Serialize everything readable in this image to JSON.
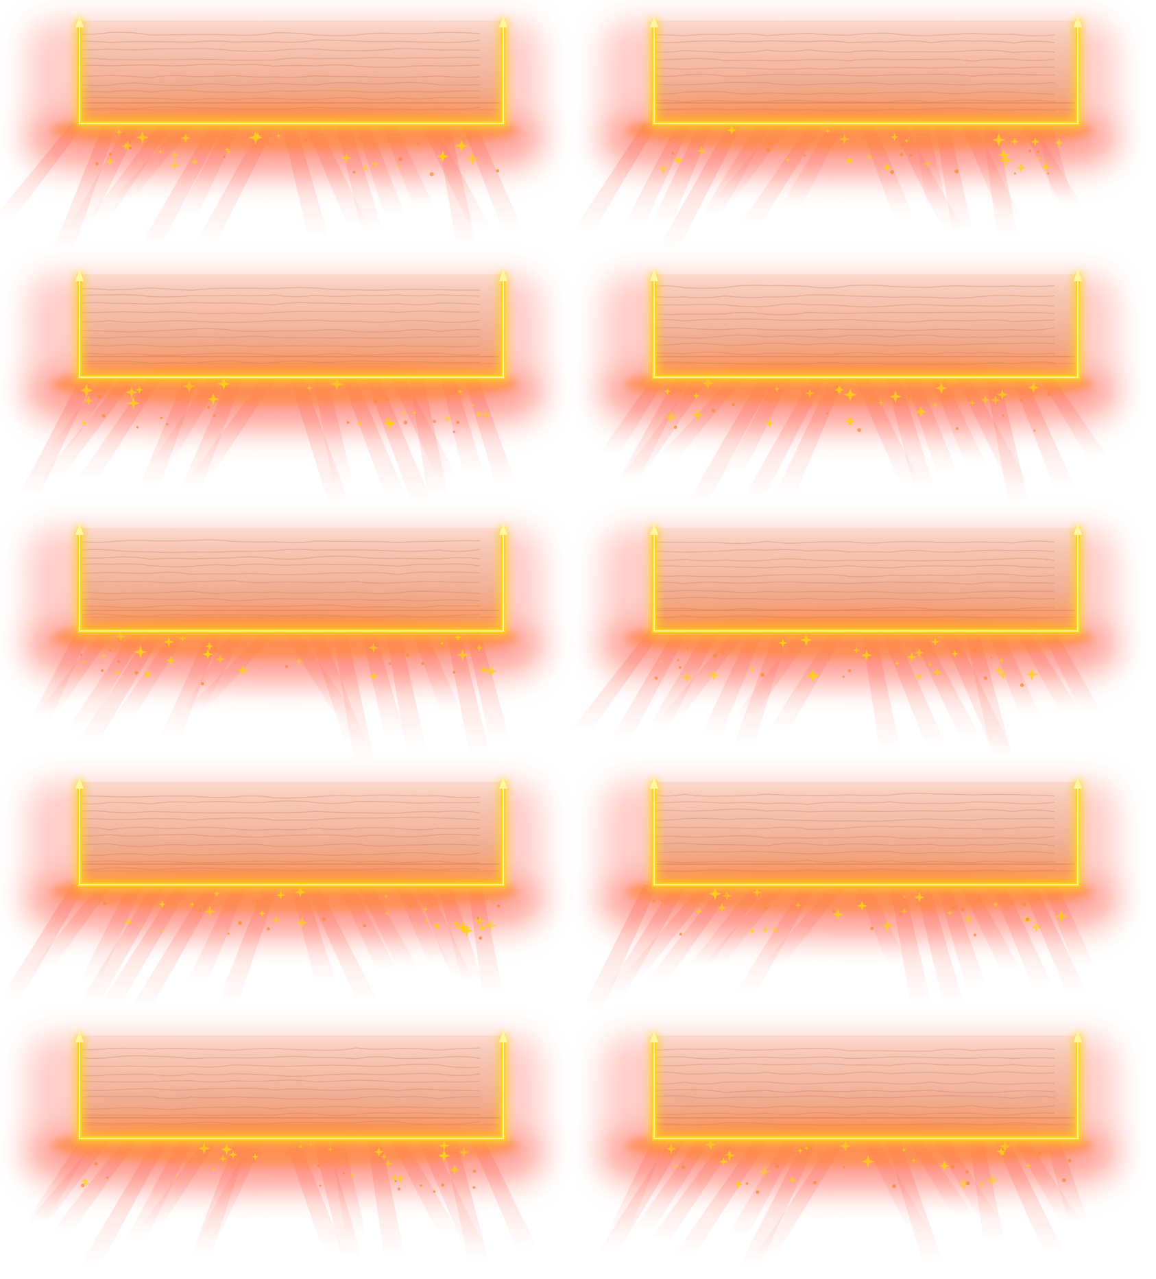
{
  "sheet": {
    "columns": 2,
    "rows": 5,
    "background": "#ffffff"
  },
  "palette": {
    "glow_outer": "#ff6f61",
    "glow_mid": "#ff8a3c",
    "wood": "#e8a07a",
    "wood_light": "#f6cdb6",
    "frame_line": "#ffd21f",
    "frame_core": "#fff6a0",
    "sparkle": "#ffcf1a"
  },
  "frames": [
    {
      "id": 1
    },
    {
      "id": 2
    },
    {
      "id": 3
    },
    {
      "id": 4
    },
    {
      "id": 5
    },
    {
      "id": 6
    },
    {
      "id": 7
    },
    {
      "id": 8
    },
    {
      "id": 9
    },
    {
      "id": 10
    }
  ]
}
